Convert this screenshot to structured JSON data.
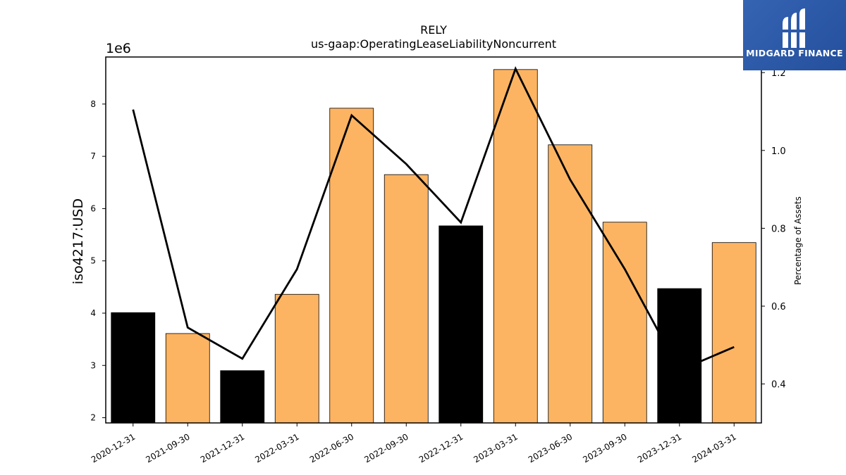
{
  "chart_data": {
    "type": "bar",
    "title": "RELY",
    "subtitle": "us-gaap:OperatingLeaseLiabilityNoncurrent",
    "ylabel": "iso4217:USD",
    "y_offset_label": "1e6",
    "y2label": "Percentage of Assets",
    "categories": [
      "2020-12-31",
      "2021-09-30",
      "2021-12-31",
      "2022-03-31",
      "2022-06-30",
      "2022-09-30",
      "2022-12-31",
      "2023-03-31",
      "2023-06-30",
      "2023-09-30",
      "2023-12-31",
      "2024-03-31"
    ],
    "values": [
      4.01,
      3.61,
      2.9,
      4.36,
      7.92,
      6.65,
      5.67,
      8.66,
      7.22,
      5.74,
      4.47,
      5.35
    ],
    "bar_colors": [
      "#000000",
      "#fdb462",
      "#000000",
      "#fdb462",
      "#fdb462",
      "#fdb462",
      "#000000",
      "#fdb462",
      "#fdb462",
      "#fdb462",
      "#000000",
      "#fdb462"
    ],
    "line_series": {
      "axis": "right",
      "values": [
        1.105,
        0.545,
        0.465,
        0.695,
        1.09,
        0.965,
        0.815,
        1.21,
        0.925,
        0.695,
        0.435,
        0.495
      ]
    },
    "ylim": [
      1.9,
      8.9
    ],
    "y2lim": [
      0.3,
      1.24
    ],
    "yticks": [
      "2",
      "3",
      "4",
      "5",
      "6",
      "7",
      "8"
    ],
    "y2ticks": [
      "0.4",
      "0.6",
      "0.8",
      "1.0",
      "1.2"
    ],
    "grid": false
  },
  "logo": {
    "text": "MIDGARD FINANCE",
    "icon": "midgard-logo-icon",
    "bg_color": "#2c5aa8"
  }
}
